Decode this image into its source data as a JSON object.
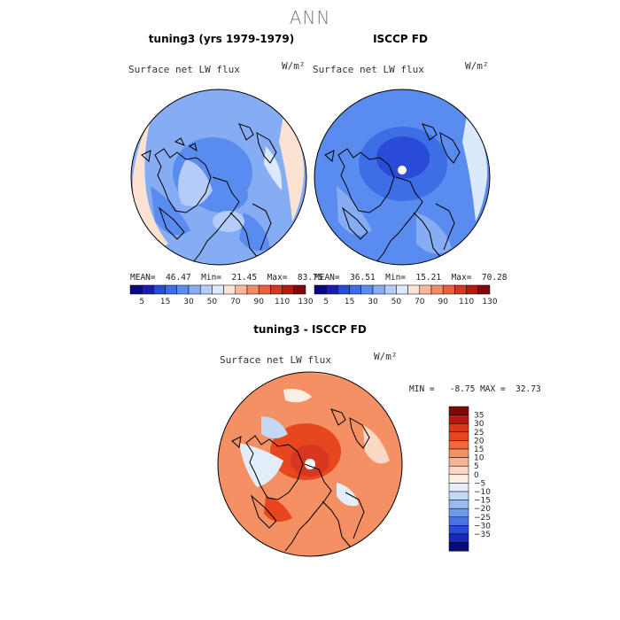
{
  "main_title": "ANN",
  "panels": [
    {
      "title": "tuning3 (yrs 1979-1979)",
      "variable": "Surface net LW flux",
      "units": "W/m²",
      "stats": {
        "mean_label": "MEAN=",
        "mean": "46.47",
        "min_label": "Min=",
        "min": "21.45",
        "max_label": "Max=",
        "max": "83.75"
      }
    },
    {
      "title": "ISCCP FD",
      "variable": "Surface net LW flux",
      "units": "W/m²",
      "stats": {
        "mean_label": "MEAN=",
        "mean": "36.51",
        "min_label": "Min=",
        "min": "15.21",
        "max_label": "Max=",
        "max": "70.28"
      }
    }
  ],
  "diff": {
    "title": "tuning3 - ISCCP FD",
    "variable": "Surface net LW flux",
    "units": "W/m²",
    "minmax": "MIN =   -8.75 MAX =  32.73"
  },
  "chart_data": [
    {
      "type": "heatmap",
      "projection": "north polar stereographic",
      "title": "tuning3 (yrs 1979-1979)",
      "variable": "Surface net LW flux",
      "units": "W/m2",
      "mean": 46.47,
      "min": 21.45,
      "max": 83.75,
      "colorbar_ticks": [
        "5",
        "15",
        "30",
        "50",
        "70",
        "90",
        "110",
        "130"
      ]
    },
    {
      "type": "heatmap",
      "projection": "north polar stereographic",
      "title": "ISCCP FD",
      "variable": "Surface net LW flux",
      "units": "W/m2",
      "mean": 36.51,
      "min": 15.21,
      "max": 70.28,
      "colorbar_ticks": [
        "5",
        "15",
        "30",
        "50",
        "70",
        "90",
        "110",
        "130"
      ]
    },
    {
      "type": "heatmap",
      "projection": "north polar stereographic",
      "title": "tuning3 - ISCCP FD",
      "variable": "Surface net LW flux",
      "units": "W/m2",
      "min": -8.75,
      "max": 32.73,
      "colorbar_ticks": [
        "35",
        "30",
        "25",
        "20",
        "15",
        "10",
        "5",
        "0",
        "−5",
        "−10",
        "−15",
        "−20",
        "−25",
        "−30",
        "−35"
      ]
    }
  ],
  "seq_colors": [
    "#0a0a7e",
    "#1c1cb4",
    "#2a4ad8",
    "#3d6ee6",
    "#5a8cf0",
    "#86acf4",
    "#b4cdf8",
    "#dce8fb",
    "#fbe2d2",
    "#f6b898",
    "#f08c64",
    "#e8603c",
    "#d8361e",
    "#b41a10",
    "#820808"
  ],
  "div_colors": [
    "#820808",
    "#b41a10",
    "#d8361e",
    "#e8461e",
    "#f06a3c",
    "#f49064",
    "#f6b494",
    "#fbd8c4",
    "#fdeee4",
    "#e4eefb",
    "#c4d8f6",
    "#9abaf2",
    "#7098ea",
    "#4a74e4",
    "#2a4ad8",
    "#1828b8",
    "#0a0a7e"
  ]
}
